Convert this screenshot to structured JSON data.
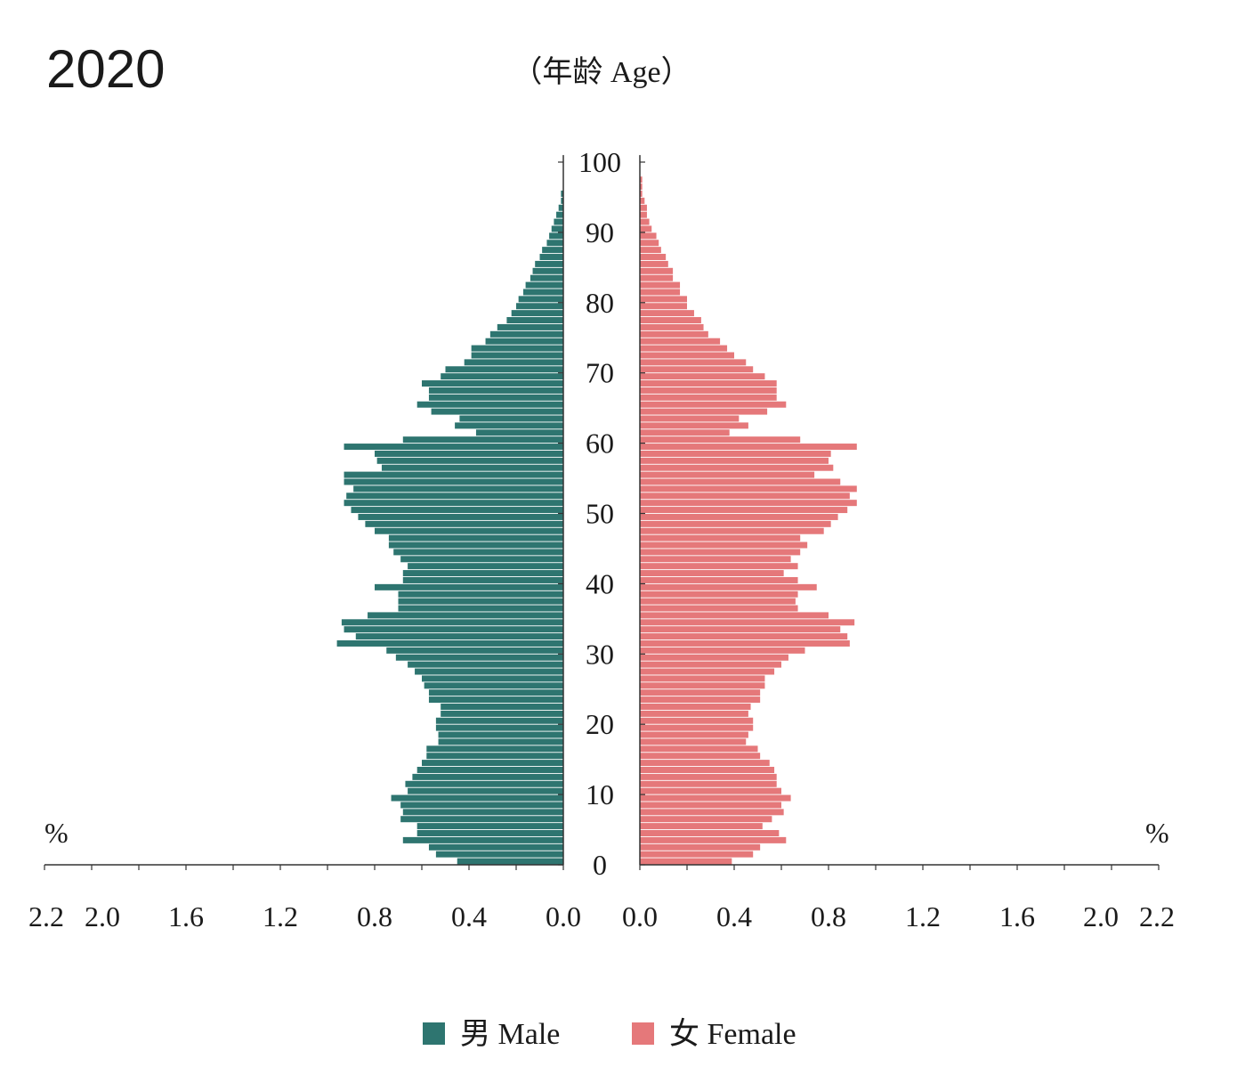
{
  "chart_data": {
    "type": "bar",
    "subtype": "population-pyramid",
    "title": "2020",
    "ylabel": "（年龄 Age）",
    "unit": "%",
    "y_ticks": [
      0,
      10,
      20,
      30,
      40,
      50,
      60,
      70,
      80,
      90,
      100
    ],
    "x_ticks": [
      2.2,
      2.0,
      1.6,
      1.2,
      0.8,
      0.4,
      0.0
    ],
    "xlim": [
      0,
      2.2
    ],
    "ylim": [
      0,
      100
    ],
    "legend_position": "bottom",
    "ages": [
      0,
      1,
      2,
      3,
      4,
      5,
      6,
      7,
      8,
      9,
      10,
      11,
      12,
      13,
      14,
      15,
      16,
      17,
      18,
      19,
      20,
      21,
      22,
      23,
      24,
      25,
      26,
      27,
      28,
      29,
      30,
      31,
      32,
      33,
      34,
      35,
      36,
      37,
      38,
      39,
      40,
      41,
      42,
      43,
      44,
      45,
      46,
      47,
      48,
      49,
      50,
      51,
      52,
      53,
      54,
      55,
      56,
      57,
      58,
      59,
      60,
      61,
      62,
      63,
      64,
      65,
      66,
      67,
      68,
      69,
      70,
      71,
      72,
      73,
      74,
      75,
      76,
      77,
      78,
      79,
      80,
      81,
      82,
      83,
      84,
      85,
      86,
      87,
      88,
      89,
      90,
      91,
      92,
      93,
      94,
      95,
      96,
      97,
      98,
      99,
      100
    ],
    "series": [
      {
        "name": "男 Male",
        "color": "#2e7570",
        "values": [
          0.45,
          0.54,
          0.57,
          0.68,
          0.62,
          0.62,
          0.69,
          0.68,
          0.69,
          0.73,
          0.66,
          0.67,
          0.64,
          0.62,
          0.6,
          0.58,
          0.58,
          0.53,
          0.53,
          0.54,
          0.54,
          0.52,
          0.52,
          0.57,
          0.57,
          0.59,
          0.6,
          0.63,
          0.66,
          0.71,
          0.75,
          0.96,
          0.88,
          0.93,
          0.94,
          0.83,
          0.7,
          0.7,
          0.7,
          0.8,
          0.68,
          0.68,
          0.66,
          0.69,
          0.72,
          0.74,
          0.74,
          0.8,
          0.84,
          0.87,
          0.9,
          0.93,
          0.92,
          0.89,
          0.93,
          0.93,
          0.77,
          0.79,
          0.8,
          0.93,
          0.68,
          0.37,
          0.46,
          0.44,
          0.56,
          0.62,
          0.57,
          0.57,
          0.6,
          0.52,
          0.5,
          0.42,
          0.39,
          0.39,
          0.33,
          0.31,
          0.28,
          0.24,
          0.22,
          0.2,
          0.19,
          0.17,
          0.16,
          0.14,
          0.13,
          0.12,
          0.1,
          0.09,
          0.07,
          0.06,
          0.05,
          0.04,
          0.03,
          0.02,
          0.01,
          0.01,
          0.0,
          0.0,
          0.0,
          0.0,
          0.0
        ]
      },
      {
        "name": "女 Female",
        "color": "#e5787a",
        "values": [
          0.39,
          0.48,
          0.51,
          0.62,
          0.59,
          0.52,
          0.56,
          0.61,
          0.6,
          0.64,
          0.6,
          0.58,
          0.58,
          0.57,
          0.55,
          0.51,
          0.5,
          0.45,
          0.46,
          0.48,
          0.48,
          0.46,
          0.47,
          0.51,
          0.51,
          0.53,
          0.53,
          0.57,
          0.6,
          0.63,
          0.7,
          0.89,
          0.88,
          0.85,
          0.91,
          0.8,
          0.67,
          0.66,
          0.67,
          0.75,
          0.67,
          0.61,
          0.67,
          0.64,
          0.68,
          0.71,
          0.68,
          0.78,
          0.81,
          0.84,
          0.88,
          0.92,
          0.89,
          0.92,
          0.85,
          0.74,
          0.82,
          0.8,
          0.81,
          0.92,
          0.68,
          0.38,
          0.46,
          0.42,
          0.54,
          0.62,
          0.58,
          0.58,
          0.58,
          0.53,
          0.48,
          0.45,
          0.4,
          0.37,
          0.34,
          0.29,
          0.27,
          0.26,
          0.23,
          0.2,
          0.2,
          0.17,
          0.17,
          0.14,
          0.14,
          0.12,
          0.11,
          0.09,
          0.08,
          0.07,
          0.05,
          0.04,
          0.03,
          0.03,
          0.02,
          0.01,
          0.01,
          0.01,
          0.0,
          0.0,
          0.0
        ]
      }
    ]
  }
}
